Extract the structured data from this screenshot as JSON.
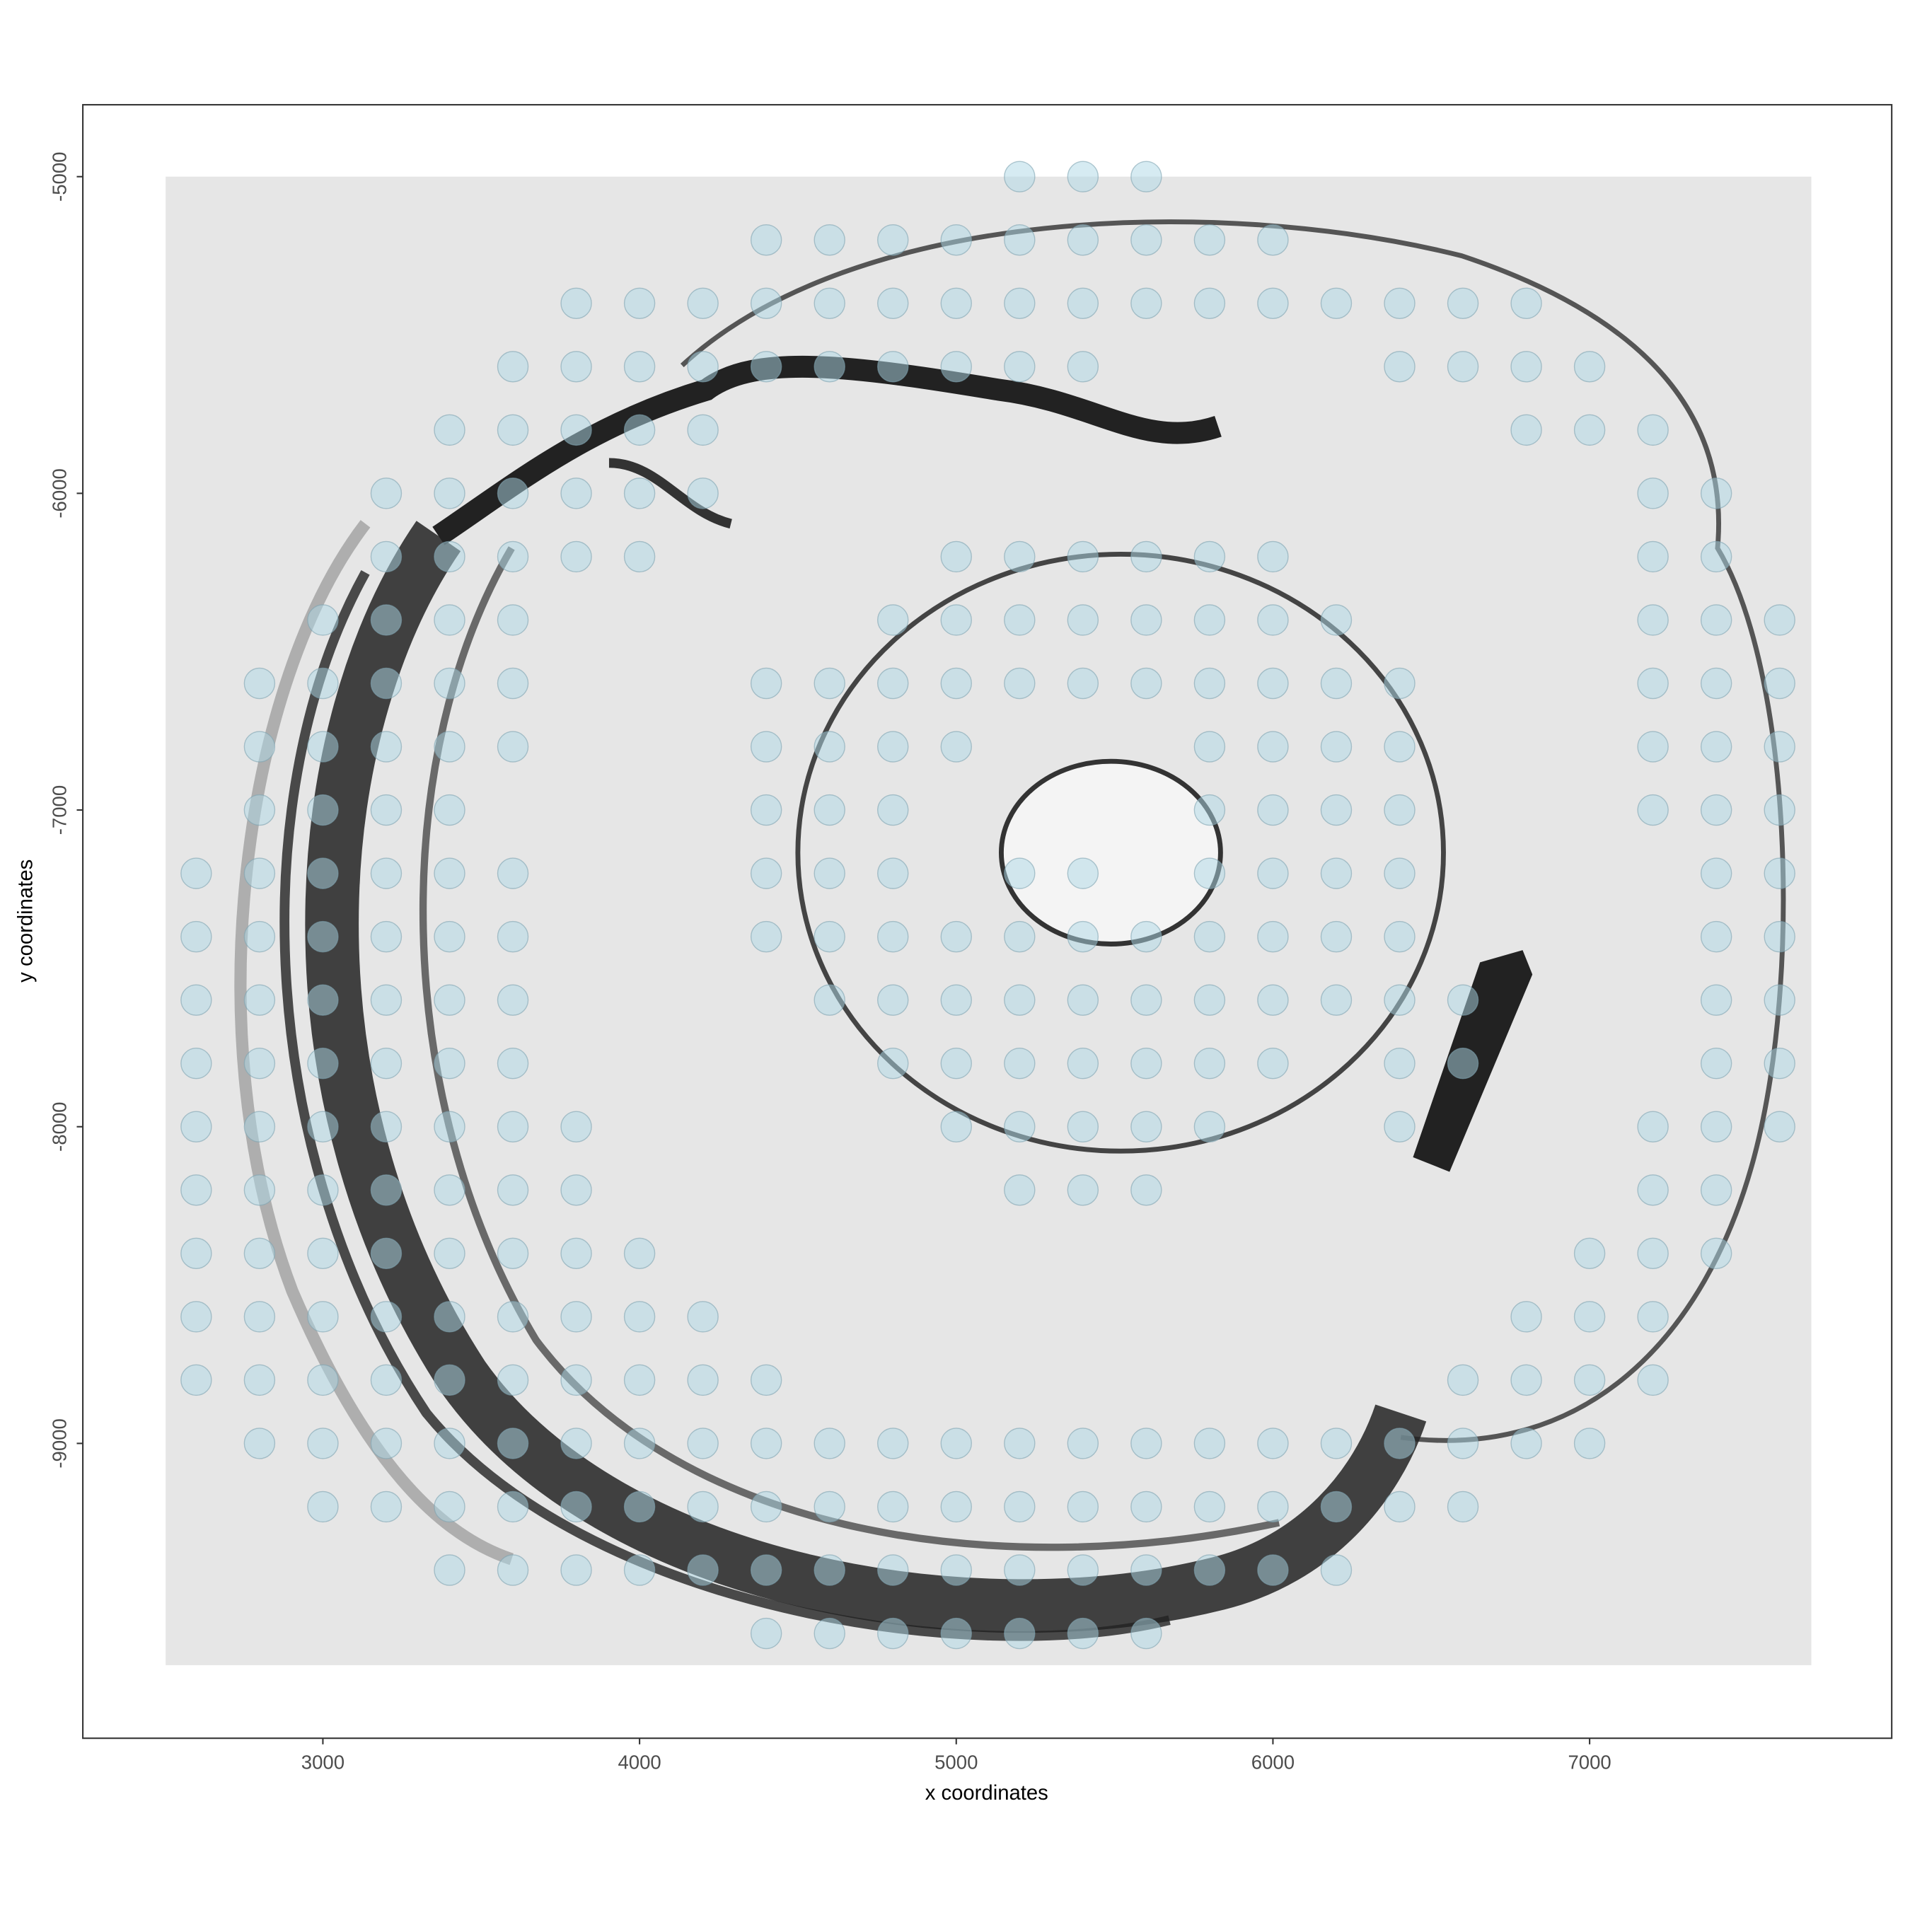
{
  "chart_data": {
    "type": "scatter",
    "x_label": "x coordinates",
    "y_label": "y coordinates",
    "xlim": [
      2242,
      7954
    ],
    "ylim": [
      -9931,
      -4773
    ],
    "xticks": [
      3000,
      4000,
      5000,
      6000,
      7000
    ],
    "yticks": [
      -5000,
      -6000,
      -7000,
      -8000,
      -9000
    ],
    "color": "#add8e6",
    "x": [
      5200,
      5400,
      5600,
      4400,
      4600,
      4800,
      5000,
      5200,
      5400,
      5600,
      5800,
      6000,
      3800,
      4000,
      4200,
      4400,
      4600,
      4800,
      5000,
      5200,
      5400,
      5600,
      5800,
      6000,
      6200,
      6400,
      6600,
      6800,
      3600,
      3800,
      4000,
      4200,
      4400,
      4600,
      4800,
      5000,
      5200,
      5400,
      6400,
      6600,
      6800,
      7000,
      3400,
      3600,
      3800,
      4000,
      4200,
      6800,
      7000,
      7200,
      3200,
      3400,
      3600,
      3800,
      4000,
      4200,
      7200,
      7400,
      3200,
      3400,
      3600,
      3800,
      4000,
      5000,
      5200,
      5400,
      5600,
      5800,
      6000,
      7200,
      7400,
      3000,
      3200,
      3400,
      3600,
      4800,
      5000,
      5200,
      5400,
      5600,
      5800,
      6000,
      6200,
      7200,
      7400,
      7600,
      2800,
      3000,
      3200,
      3400,
      3600,
      4400,
      4600,
      4800,
      5000,
      5200,
      5400,
      5600,
      5800,
      6000,
      6200,
      6400,
      7200,
      7400,
      7600,
      2800,
      3000,
      3200,
      3400,
      3600,
      4400,
      4600,
      4800,
      5000,
      5800,
      6000,
      6200,
      6400,
      7200,
      7400,
      7600,
      2800,
      3000,
      3200,
      3400,
      4400,
      4600,
      4800,
      5800,
      6000,
      6200,
      6400,
      7200,
      7400,
      7600,
      2600,
      2800,
      3000,
      3200,
      3400,
      3600,
      4400,
      4600,
      4800,
      5200,
      5400,
      5800,
      6000,
      6200,
      6400,
      7400,
      7600,
      2600,
      2800,
      3000,
      3200,
      3400,
      3600,
      4400,
      4600,
      4800,
      5000,
      5200,
      5400,
      5600,
      5800,
      6000,
      6200,
      6400,
      7400,
      7600,
      2600,
      2800,
      3000,
      3200,
      3400,
      3600,
      4600,
      4800,
      5000,
      5200,
      5400,
      5600,
      5800,
      6000,
      6200,
      6400,
      6600,
      7400,
      7600,
      2600,
      2800,
      3000,
      3200,
      3400,
      3600,
      4800,
      5000,
      5200,
      5400,
      5600,
      5800,
      6000,
      6400,
      6600,
      7400,
      7600,
      2600,
      2800,
      3000,
      3200,
      3400,
      3600,
      3800,
      5000,
      5200,
      5400,
      5600,
      5800,
      6400,
      7200,
      7400,
      7600,
      2600,
      2800,
      3000,
      3200,
      3400,
      3600,
      3800,
      5200,
      5400,
      5600,
      7200,
      7400,
      2600,
      2800,
      3000,
      3200,
      3400,
      3600,
      3800,
      4000,
      7000,
      7200,
      7400,
      2600,
      2800,
      3000,
      3200,
      3400,
      3600,
      3800,
      4000,
      4200,
      6800,
      7000,
      7200,
      2600,
      2800,
      3000,
      3200,
      3400,
      3600,
      3800,
      4000,
      4200,
      4400,
      6600,
      6800,
      7000,
      7200,
      2800,
      3000,
      3200,
      3400,
      3600,
      3800,
      4000,
      4200,
      4400,
      4600,
      4800,
      5000,
      5200,
      5400,
      5600,
      5800,
      6000,
      6200,
      6400,
      6600,
      6800,
      7000,
      3000,
      3200,
      3400,
      3600,
      3800,
      4000,
      4200,
      4400,
      4600,
      4800,
      5000,
      5200,
      5400,
      5600,
      5800,
      6000,
      6200,
      6400,
      6600,
      3400,
      3600,
      3800,
      4000,
      4200,
      4400,
      4600,
      4800,
      5000,
      5200,
      5400,
      5600,
      5800,
      6000,
      6200,
      4400,
      4600,
      4800,
      5000,
      5200,
      5400,
      5600
    ],
    "y": [
      -5000,
      -5000,
      -5000,
      -5200,
      -5200,
      -5200,
      -5200,
      -5200,
      -5200,
      -5200,
      -5200,
      -5200,
      -5400,
      -5400,
      -5400,
      -5400,
      -5400,
      -5400,
      -5400,
      -5400,
      -5400,
      -5400,
      -5400,
      -5400,
      -5400,
      -5400,
      -5400,
      -5400,
      -5600,
      -5600,
      -5600,
      -5600,
      -5600,
      -5600,
      -5600,
      -5600,
      -5600,
      -5600,
      -5600,
      -5600,
      -5600,
      -5600,
      -5800,
      -5800,
      -5800,
      -5800,
      -5800,
      -5800,
      -5800,
      -5800,
      -6000,
      -6000,
      -6000,
      -6000,
      -6000,
      -6000,
      -6000,
      -6000,
      -6200,
      -6200,
      -6200,
      -6200,
      -6200,
      -6200,
      -6200,
      -6200,
      -6200,
      -6200,
      -6200,
      -6200,
      -6200,
      -6400,
      -6400,
      -6400,
      -6400,
      -6400,
      -6400,
      -6400,
      -6400,
      -6400,
      -6400,
      -6400,
      -6400,
      -6400,
      -6400,
      -6400,
      -6600,
      -6600,
      -6600,
      -6600,
      -6600,
      -6600,
      -6600,
      -6600,
      -6600,
      -6600,
      -6600,
      -6600,
      -6600,
      -6600,
      -6600,
      -6600,
      -6600,
      -6600,
      -6600,
      -6800,
      -6800,
      -6800,
      -6800,
      -6800,
      -6800,
      -6800,
      -6800,
      -6800,
      -6800,
      -6800,
      -6800,
      -6800,
      -6800,
      -6800,
      -6800,
      -7000,
      -7000,
      -7000,
      -7000,
      -7000,
      -7000,
      -7000,
      -7000,
      -7000,
      -7000,
      -7000,
      -7000,
      -7000,
      -7000,
      -7200,
      -7200,
      -7200,
      -7200,
      -7200,
      -7200,
      -7200,
      -7200,
      -7200,
      -7200,
      -7200,
      -7200,
      -7200,
      -7200,
      -7200,
      -7200,
      -7200,
      -7400,
      -7400,
      -7400,
      -7400,
      -7400,
      -7400,
      -7400,
      -7400,
      -7400,
      -7400,
      -7400,
      -7400,
      -7400,
      -7400,
      -7400,
      -7400,
      -7400,
      -7400,
      -7400,
      -7600,
      -7600,
      -7600,
      -7600,
      -7600,
      -7600,
      -7600,
      -7600,
      -7600,
      -7600,
      -7600,
      -7600,
      -7600,
      -7600,
      -7600,
      -7600,
      -7600,
      -7600,
      -7600,
      -7800,
      -7800,
      -7800,
      -7800,
      -7800,
      -7800,
      -7800,
      -7800,
      -7800,
      -7800,
      -7800,
      -7800,
      -7800,
      -7800,
      -7800,
      -7800,
      -7800,
      -8000,
      -8000,
      -8000,
      -8000,
      -8000,
      -8000,
      -8000,
      -8000,
      -8000,
      -8000,
      -8000,
      -8000,
      -8000,
      -8000,
      -8000,
      -8000,
      -8200,
      -8200,
      -8200,
      -8200,
      -8200,
      -8200,
      -8200,
      -8200,
      -8200,
      -8200,
      -8200,
      -8200,
      -8400,
      -8400,
      -8400,
      -8400,
      -8400,
      -8400,
      -8400,
      -8400,
      -8400,
      -8400,
      -8400,
      -8600,
      -8600,
      -8600,
      -8600,
      -8600,
      -8600,
      -8600,
      -8600,
      -8600,
      -8600,
      -8600,
      -8600,
      -8800,
      -8800,
      -8800,
      -8800,
      -8800,
      -8800,
      -8800,
      -8800,
      -8800,
      -8800,
      -8800,
      -8800,
      -8800,
      -8800,
      -9000,
      -9000,
      -9000,
      -9000,
      -9000,
      -9000,
      -9000,
      -9000,
      -9000,
      -9000,
      -9000,
      -9000,
      -9000,
      -9000,
      -9000,
      -9000,
      -9000,
      -9000,
      -9000,
      -9000,
      -9000,
      -9000,
      -9200,
      -9200,
      -9200,
      -9200,
      -9200,
      -9200,
      -9200,
      -9200,
      -9200,
      -9200,
      -9200,
      -9200,
      -9200,
      -9200,
      -9200,
      -9200,
      -9200,
      -9200,
      -9200,
      -9400,
      -9400,
      -9400,
      -9400,
      -9400,
      -9400,
      -9400,
      -9400,
      -9400,
      -9400,
      -9400,
      -9400,
      -9400,
      -9400,
      -9400,
      -9600,
      -9600,
      -9600,
      -9600,
      -9600,
      -9600,
      -9600
    ]
  }
}
